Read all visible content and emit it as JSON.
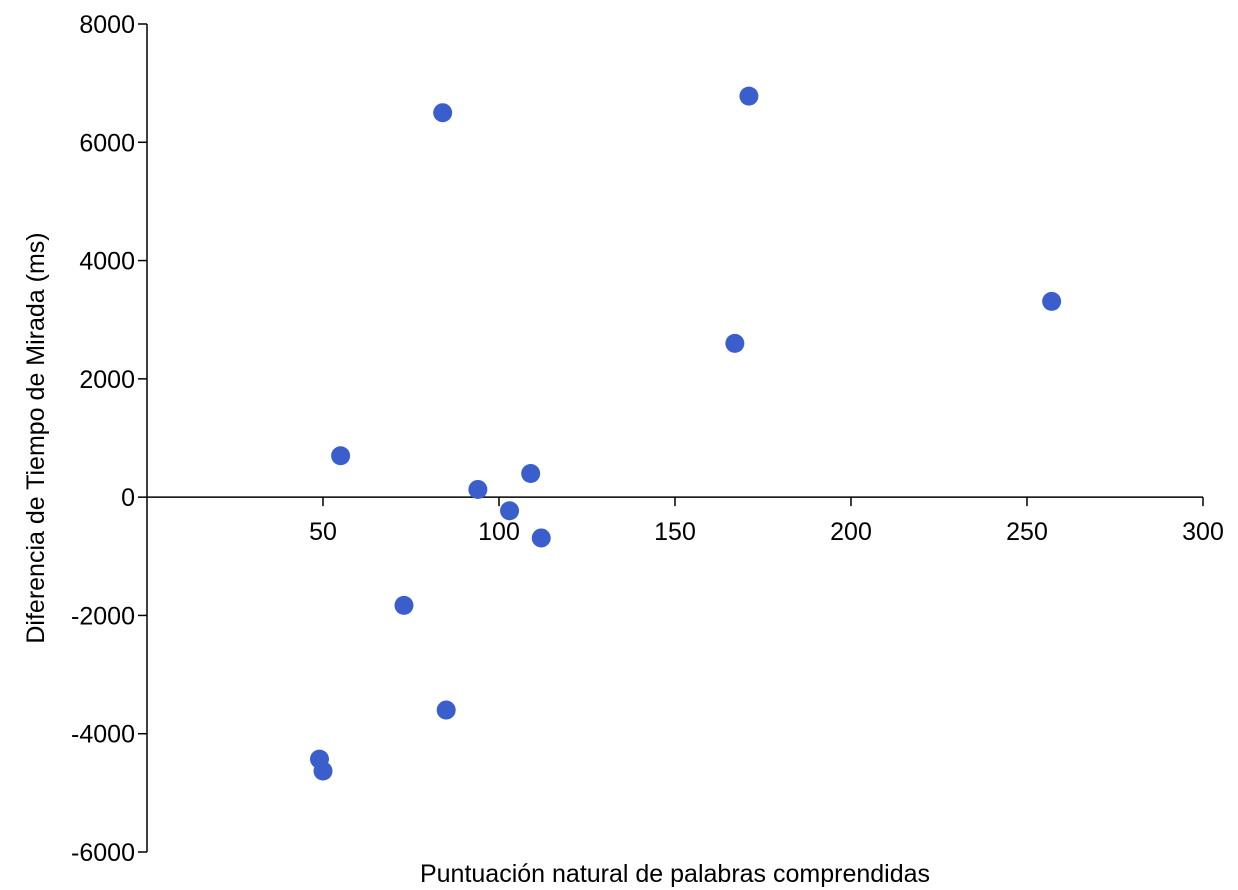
{
  "chart_data": {
    "type": "scatter",
    "title": "",
    "xlabel": "Puntuación natural de palabras comprendidas",
    "ylabel": "Diferencia de Tiempo de Mirada (ms)",
    "xlim": [
      0,
      300
    ],
    "ylim": [
      -6000,
      8000
    ],
    "x_ticks": [
      50,
      100,
      150,
      200,
      250,
      300
    ],
    "y_ticks": [
      8000,
      6000,
      4000,
      2000,
      0,
      -2000,
      -4000,
      -6000
    ],
    "grid": false,
    "legend": false,
    "marker_color": "#3a5fcd",
    "series": [
      {
        "x": [
          84,
          171,
          257,
          167,
          55,
          109,
          94,
          103,
          112,
          73,
          85,
          49,
          50
        ],
        "y": [
          6500,
          6780,
          3310,
          2600,
          700,
          400,
          130,
          -230,
          -690,
          -1830,
          -3600,
          -4430,
          -4630
        ]
      }
    ]
  }
}
